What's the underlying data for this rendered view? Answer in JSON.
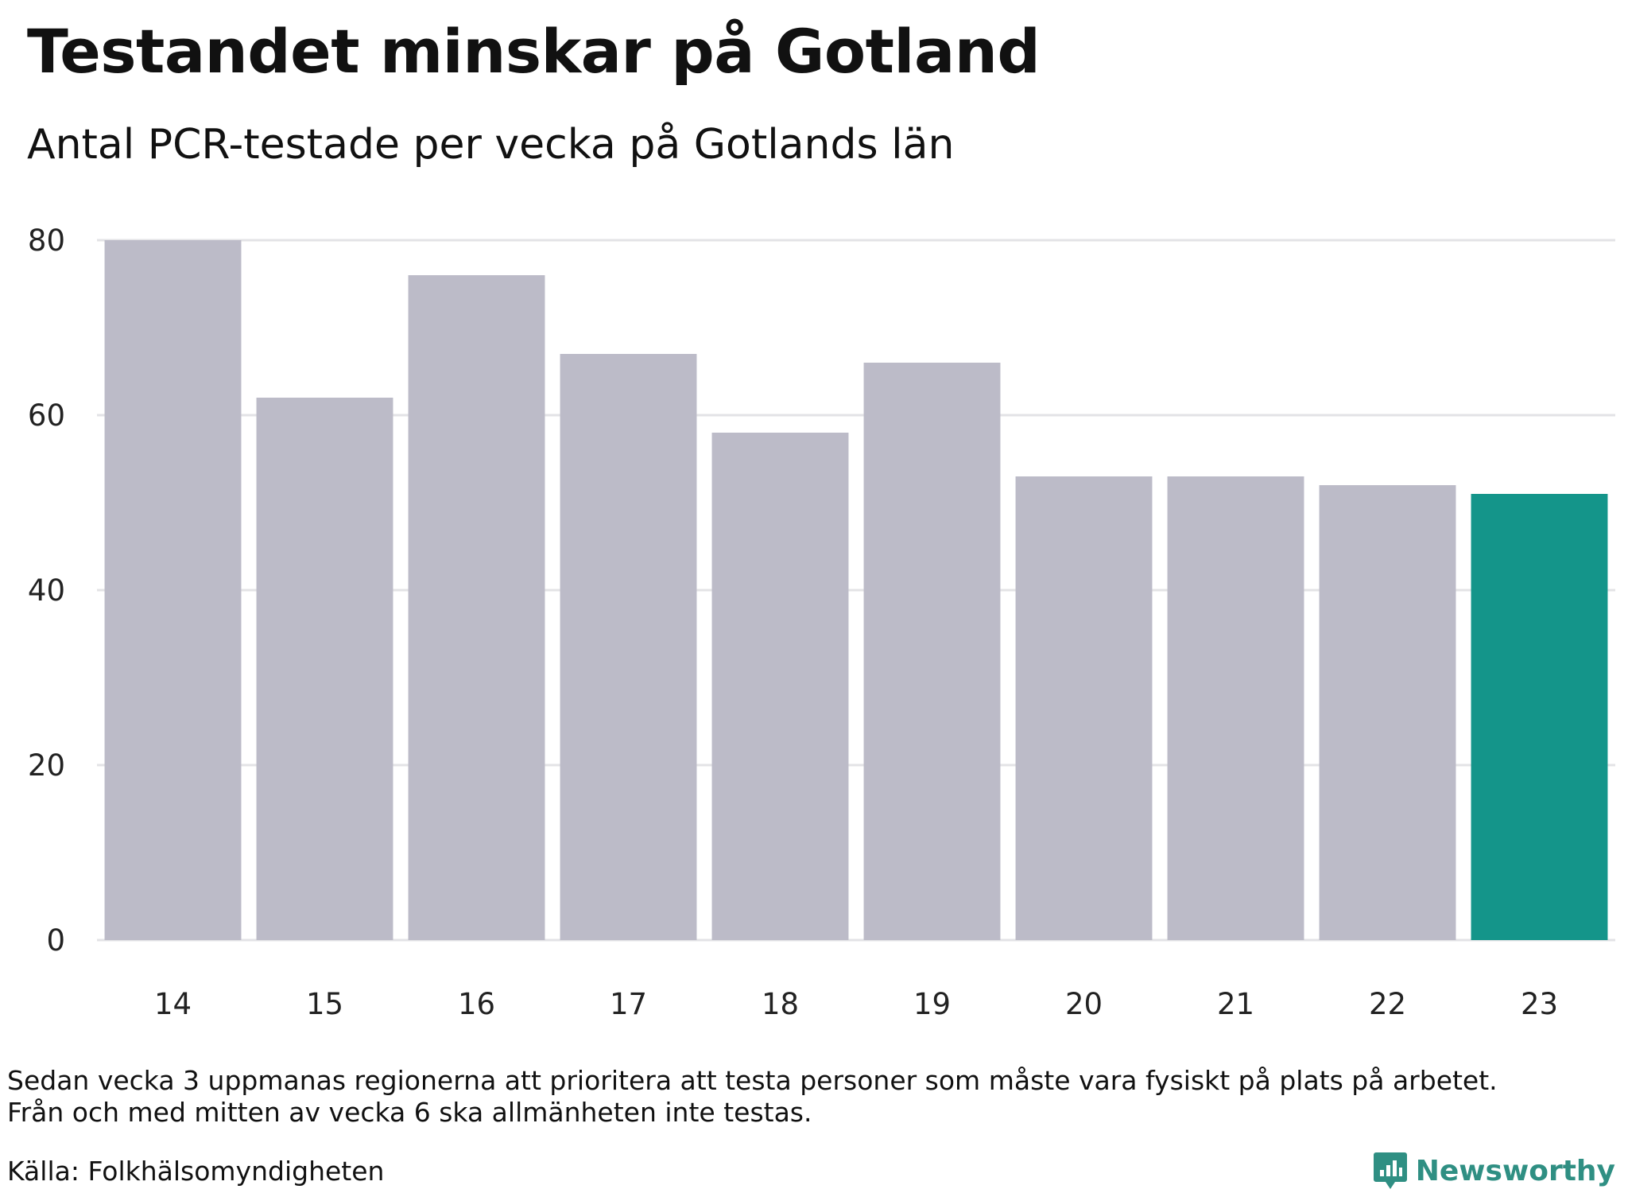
{
  "colors": {
    "bar": "#bcbbc8",
    "highlight": "#14958a",
    "grid": "#e3e3e6",
    "brand": "#2f8f83"
  },
  "chart_data": {
    "type": "bar",
    "title": "Testandet minskar på Gotland",
    "subtitle": "Antal PCR-testade per vecka på Gotlands län",
    "xlabel": "",
    "ylabel": "",
    "categories": [
      "14",
      "15",
      "16",
      "17",
      "18",
      "19",
      "20",
      "21",
      "22",
      "23"
    ],
    "values": [
      80,
      62,
      76,
      67,
      58,
      66,
      53,
      53,
      52,
      51
    ],
    "highlight_index": 9,
    "ylim": [
      0,
      80
    ],
    "yticks": [
      0,
      20,
      40,
      60,
      80
    ],
    "grid": true,
    "legend": "none"
  },
  "notes": {
    "line1": "Sedan vecka 3 uppmanas regionerna att prioritera att testa personer som måste vara fysiskt på plats på arbetet.",
    "line2": "Från och med mitten av vecka 6 ska allmänheten inte testas."
  },
  "source": "Källa: Folkhälsomyndigheten",
  "brand": {
    "name": "Newsworthy",
    "icon": "newsworthy-logo-icon"
  }
}
